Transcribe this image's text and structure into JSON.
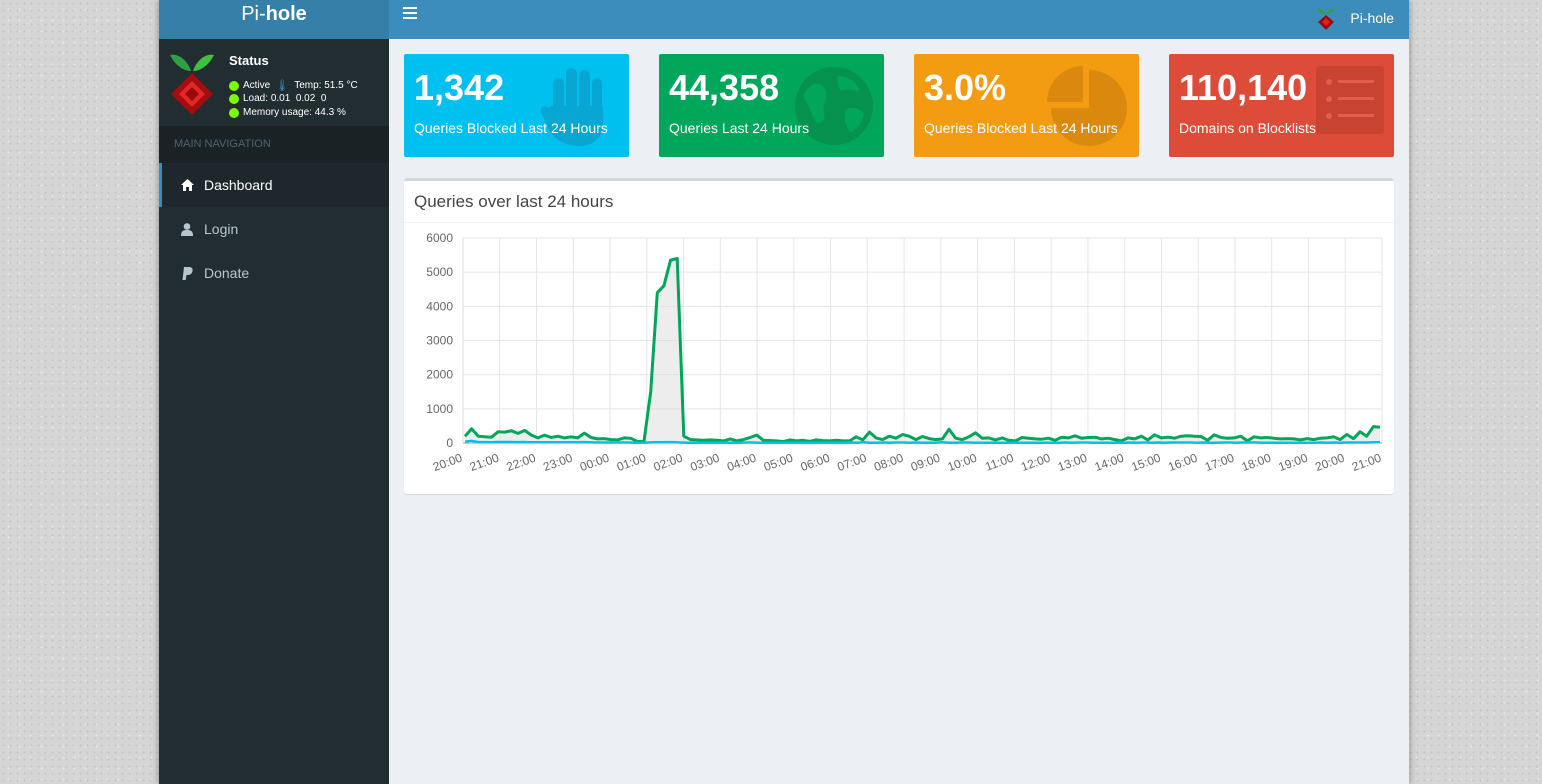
{
  "app": {
    "brand_prefix": "Pi-",
    "brand_suffix": "hole",
    "user_name": "Pi-hole"
  },
  "colors": {
    "header": "#3c8dbc",
    "logo_bg": "#367fa9",
    "sidebar": "#222d32",
    "aqua": "#00c0ef",
    "green": "#00a65a",
    "yellow": "#f39c12",
    "red": "#dd4b39"
  },
  "status": {
    "title": "Status",
    "active": "Active",
    "temp_label": "Temp:",
    "temp_value": "51.5 °C",
    "load_label": "Load:",
    "load_value": "0.01  0.02  0",
    "memory_label": "Memory usage:",
    "memory_value": "44.3 %"
  },
  "sidebar": {
    "header": "MAIN NAVIGATION",
    "items": [
      {
        "label": "Dashboard",
        "icon": "home-icon",
        "active": true
      },
      {
        "label": "Login",
        "icon": "user-icon",
        "active": false
      },
      {
        "label": "Donate",
        "icon": "paypal-icon",
        "active": false
      }
    ]
  },
  "stats": [
    {
      "value": "1,342",
      "label": "Queries Blocked Last 24 Hours",
      "icon": "hand-icon",
      "color": "#00c0ef"
    },
    {
      "value": "44,358",
      "label": "Queries Last 24 Hours",
      "icon": "globe-icon",
      "color": "#00a65a"
    },
    {
      "value": "3.0%",
      "label": "Queries Blocked Last 24 Hours",
      "icon": "pie-chart-icon",
      "color": "#f39c12"
    },
    {
      "value": "110,140",
      "label": "Domains on Blocklists",
      "icon": "list-icon",
      "color": "#dd4b39"
    }
  ],
  "chart_data": {
    "type": "line",
    "title": "Queries over last 24 hours",
    "y_ticks": [
      "0",
      "1000",
      "2000",
      "3000",
      "4000",
      "5000",
      "6000"
    ],
    "ylim": [
      0,
      6000
    ],
    "x_ticks": [
      "20:00",
      "21:00",
      "22:00",
      "23:00",
      "00:00",
      "01:00",
      "02:00",
      "03:00",
      "04:00",
      "05:00",
      "06:00",
      "07:00",
      "08:00",
      "09:00",
      "10:00",
      "11:00",
      "12:00",
      "13:00",
      "14:00",
      "15:00",
      "16:00",
      "17:00",
      "18:00",
      "19:00",
      "20:00",
      "21:00"
    ],
    "grid": true,
    "series": [
      {
        "color": "#00a65a",
        "values": [
          200,
          420,
          200,
          180,
          170,
          330,
          320,
          360,
          280,
          370,
          230,
          150,
          230,
          160,
          200,
          150,
          180,
          150,
          290,
          160,
          120,
          130,
          100,
          90,
          150,
          140,
          40,
          50,
          1500,
          4400,
          4600,
          5350,
          5400,
          200,
          100,
          90,
          80,
          90,
          80,
          60,
          120,
          60,
          100,
          160,
          230,
          80,
          70,
          60,
          40,
          90,
          60,
          80,
          50,
          90,
          70,
          60,
          80,
          60,
          60,
          180,
          90,
          320,
          150,
          100,
          200,
          140,
          250,
          200,
          100,
          190,
          130,
          100,
          120,
          400,
          140,
          100,
          180,
          300,
          140,
          150,
          90,
          150,
          80,
          60,
          160,
          140,
          120,
          110,
          140,
          80,
          170,
          150,
          210,
          140,
          160,
          170,
          120,
          140,
          100,
          60,
          150,
          120,
          200,
          90,
          240,
          150,
          170,
          140,
          200,
          210,
          200,
          190,
          80,
          240,
          160,
          140,
          150,
          200,
          60,
          180,
          150,
          160,
          140,
          120,
          130,
          120,
          90,
          130,
          100,
          140,
          150,
          180,
          100,
          250,
          130,
          330,
          200,
          480,
          460
        ]
      },
      {
        "color": "#00c0ef",
        "values": [
          40,
          60,
          30,
          25,
          20,
          30,
          30,
          30,
          25,
          30,
          20,
          20,
          20,
          20,
          20,
          20,
          20,
          20,
          25,
          20,
          15,
          15,
          15,
          15,
          15,
          15,
          10,
          10,
          15,
          20,
          20,
          25,
          25,
          15,
          10,
          10,
          10,
          10,
          10,
          10,
          10,
          10,
          10,
          15,
          15,
          10,
          10,
          10,
          10,
          10,
          10,
          10,
          10,
          10,
          10,
          10,
          10,
          10,
          10,
          15,
          10,
          20,
          10,
          10,
          15,
          10,
          15,
          15,
          10,
          15,
          10,
          10,
          10,
          20,
          10,
          10,
          15,
          15,
          10,
          10,
          10,
          10,
          10,
          10,
          10,
          10,
          10,
          10,
          10,
          10,
          10,
          10,
          15,
          10,
          15,
          15,
          10,
          10,
          10,
          10,
          10,
          10,
          15,
          10,
          15,
          10,
          15,
          10,
          15,
          15,
          15,
          15,
          10,
          15,
          10,
          10,
          15,
          15,
          10,
          15,
          15,
          15,
          10,
          10,
          10,
          10,
          10,
          10,
          10,
          10,
          10,
          15,
          10,
          15,
          10,
          15,
          15,
          15,
          15,
          20,
          20
        ]
      }
    ]
  }
}
